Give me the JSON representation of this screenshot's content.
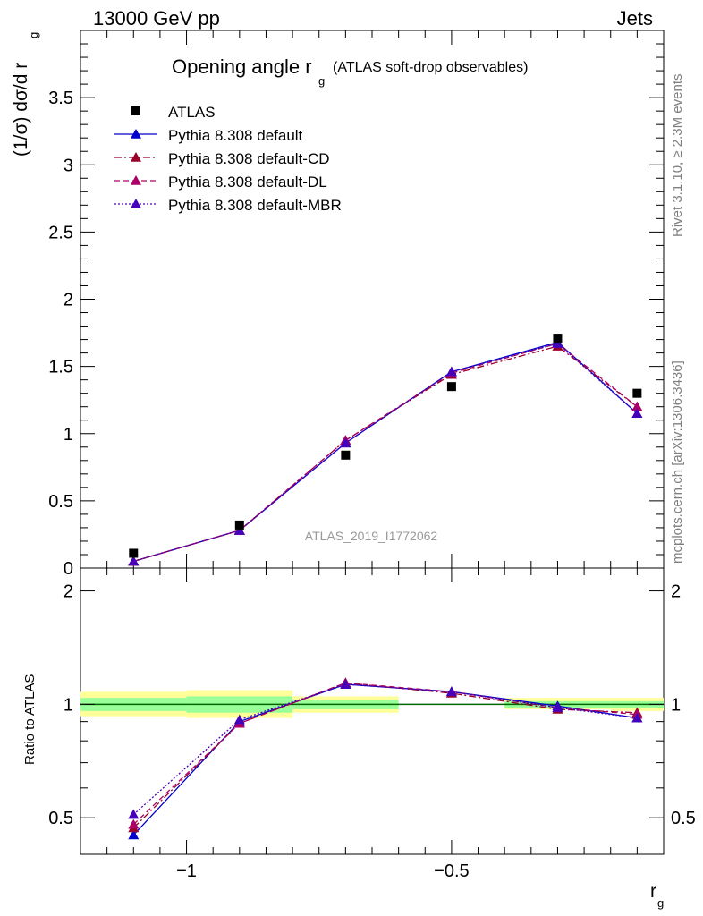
{
  "header": {
    "left": "13000 GeV pp",
    "right": "Jets"
  },
  "side": {
    "rivet": "Rivet 3.1.10, ≥ 2.3M events",
    "mcplots": "mcplots.cern.ch [arXiv:1306.3436]"
  },
  "chart_data": {
    "type": "scatter",
    "title_main": "Opening angle r",
    "title_sub": "g",
    "title_extra": "(ATLAS soft-drop observables)",
    "analysis_label": "ATLAS_2019_I1772062",
    "xlabel_main": "r",
    "xlabel_sub": "g",
    "ylabel_main": "(1/σ) dσ/d r",
    "ylabel_sub": "g",
    "ratio_ylabel": "Ratio to ATLAS",
    "xlim": [
      -1.2,
      -0.1
    ],
    "ylim": [
      0,
      4.0
    ],
    "ratio_ylim": [
      0.4,
      2.3
    ],
    "log_y_ratio": true,
    "x_ticks": [
      -1,
      -0.5
    ],
    "x_tick_labels": [
      "−1",
      "−0.5"
    ],
    "y_ticks": [
      0.5,
      1,
      1.5,
      2,
      2.5,
      3,
      3.5
    ],
    "y_tick_labels": [
      "0.5",
      "1",
      "1.5",
      "2",
      "2.5",
      "3",
      "3.5"
    ],
    "y_zero_label": "0",
    "ratio_y_ticks": [
      0.5,
      1,
      2
    ],
    "ratio_y_tick_labels": [
      "0.5",
      "1",
      "2"
    ],
    "bins": [
      [
        -1.2,
        -1.0
      ],
      [
        -1.0,
        -0.8
      ],
      [
        -0.8,
        -0.6
      ],
      [
        -0.6,
        -0.4
      ],
      [
        -0.4,
        -0.2
      ],
      [
        -0.2,
        -0.1
      ]
    ],
    "x": [
      -1.1,
      -0.9,
      -0.7,
      -0.5,
      -0.3,
      -0.15
    ],
    "data": {
      "name": "ATLAS",
      "values": [
        0.11,
        0.32,
        0.84,
        1.35,
        1.71,
        1.3
      ]
    },
    "band_yellow": [
      [
        0.93,
        1.08
      ],
      [
        0.92,
        1.09
      ],
      [
        0.95,
        1.05
      ],
      [
        1.0,
        1.0
      ],
      [
        0.97,
        1.04
      ],
      [
        0.96,
        1.04
      ]
    ],
    "band_green": [
      [
        0.96,
        1.04
      ],
      [
        0.95,
        1.05
      ],
      [
        0.97,
        1.03
      ],
      [
        1.0,
        1.0
      ],
      [
        0.98,
        1.02
      ],
      [
        0.98,
        1.02
      ]
    ],
    "series": [
      {
        "name": "Pythia 8.308 default",
        "color": "#0000cc",
        "dash": "",
        "values": [
          0.05,
          0.28,
          0.93,
          1.46,
          1.68,
          1.15
        ],
        "ratio": [
          0.45,
          0.9,
          1.13,
          1.08,
          0.99,
          0.92
        ]
      },
      {
        "name": "Pythia 8.308 default-CD",
        "color": "#99002a",
        "dash": "8,3,2,3",
        "values": [
          0.05,
          0.28,
          0.95,
          1.44,
          1.65,
          1.2
        ],
        "ratio": [
          0.47,
          0.89,
          1.14,
          1.07,
          0.97,
          0.95
        ]
      },
      {
        "name": "Pythia 8.308 default-DL",
        "color": "#aa0066",
        "dash": "6,4",
        "values": [
          0.05,
          0.28,
          0.95,
          1.45,
          1.67,
          1.2
        ],
        "ratio": [
          0.48,
          0.89,
          1.14,
          1.08,
          0.98,
          0.94
        ]
      },
      {
        "name": "Pythia 8.308 default-MBR",
        "color": "#4400bb",
        "dash": "2,2",
        "values": [
          0.05,
          0.28,
          0.93,
          1.46,
          1.67,
          1.15
        ],
        "ratio": [
          0.51,
          0.91,
          1.13,
          1.08,
          0.98,
          0.92
        ]
      }
    ],
    "data_ratio_errors": [
      0.02,
      0.02,
      0.01,
      0.01,
      0.01,
      0.01
    ],
    "legend_position": "top-left",
    "reference_line_color": "#006600"
  }
}
